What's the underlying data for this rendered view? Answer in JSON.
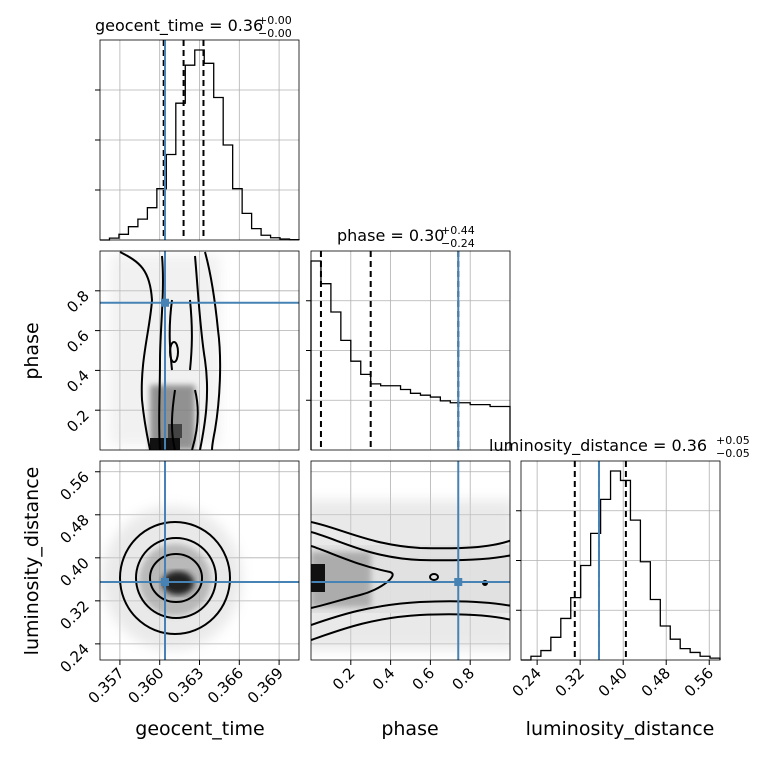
{
  "figure": {
    "accent_truth_color": "#4682b4",
    "histogram_color": "#000000",
    "quantile_line_style": "dashed",
    "grid": true
  },
  "titles": {
    "geocent_time": {
      "name": "geocent_time = 0.36",
      "sup": "+0.00",
      "sub": "−0.00"
    },
    "phase": {
      "name": "phase = 0.30",
      "sup": "+0.44",
      "sub": "−0.24"
    },
    "luminosity_distance": {
      "name": "luminosity_distance = 0.36",
      "sup": "+0.05",
      "sub": "−0.05"
    }
  },
  "axis_labels": {
    "x": [
      "geocent_time",
      "phase",
      "luminosity_distance"
    ],
    "y": [
      "phase",
      "luminosity_distance"
    ]
  },
  "chart_data": {
    "type": "corner",
    "parameters": [
      "geocent_time",
      "phase",
      "luminosity_distance"
    ],
    "truths": {
      "geocent_time": 0.3604,
      "phase": 0.74,
      "luminosity_distance": 0.355
    },
    "quantiles": {
      "geocent_time": [
        0.3603,
        0.3618,
        0.3633
      ],
      "phase": [
        0.05,
        0.3,
        0.74
      ],
      "luminosity_distance": [
        0.31,
        0.355,
        0.405
      ]
    },
    "ranges": {
      "geocent_time": [
        0.3555,
        0.3705
      ],
      "phase": [
        0.0,
        1.0
      ],
      "luminosity_distance": [
        0.21,
        0.58
      ]
    },
    "ticks": {
      "geocent_time": [
        0.357,
        0.36,
        0.363,
        0.366,
        0.369
      ],
      "phase": [
        0.2,
        0.4,
        0.6,
        0.8
      ],
      "luminosity_distance": [
        0.24,
        0.32,
        0.4,
        0.48,
        0.56
      ]
    },
    "tick_labels": {
      "geocent_time": [
        "0.357",
        "0.360",
        "0.363",
        "0.366",
        "0.369"
      ],
      "phase": [
        "0.2",
        "0.4",
        "0.6",
        "0.8"
      ],
      "luminosity_distance": [
        "0.24",
        "0.32",
        "0.40",
        "0.48",
        "0.56"
      ]
    },
    "histograms": {
      "geocent_time": {
        "edges_range": [
          0.3555,
          0.3705
        ],
        "counts": [
          0.0,
          0.01,
          0.03,
          0.07,
          0.11,
          0.17,
          0.27,
          0.45,
          0.72,
          0.92,
          1.0,
          0.93,
          0.75,
          0.5,
          0.27,
          0.14,
          0.06,
          0.025,
          0.012,
          0.005,
          0.002
        ]
      },
      "phase": {
        "edges_range": [
          0.0,
          1.0
        ],
        "counts": [
          1.0,
          0.88,
          0.73,
          0.58,
          0.47,
          0.4,
          0.35,
          0.34,
          0.34,
          0.32,
          0.3,
          0.29,
          0.28,
          0.26,
          0.25,
          0.25,
          0.24,
          0.24,
          0.23,
          0.23
        ]
      },
      "luminosity_distance": {
        "edges_range": [
          0.21,
          0.58
        ],
        "counts": [
          0.0,
          0.02,
          0.05,
          0.12,
          0.22,
          0.33,
          0.5,
          0.67,
          0.85,
          1.0,
          0.95,
          0.74,
          0.52,
          0.32,
          0.18,
          0.11,
          0.06,
          0.04,
          0.02,
          0.01
        ]
      }
    }
  }
}
